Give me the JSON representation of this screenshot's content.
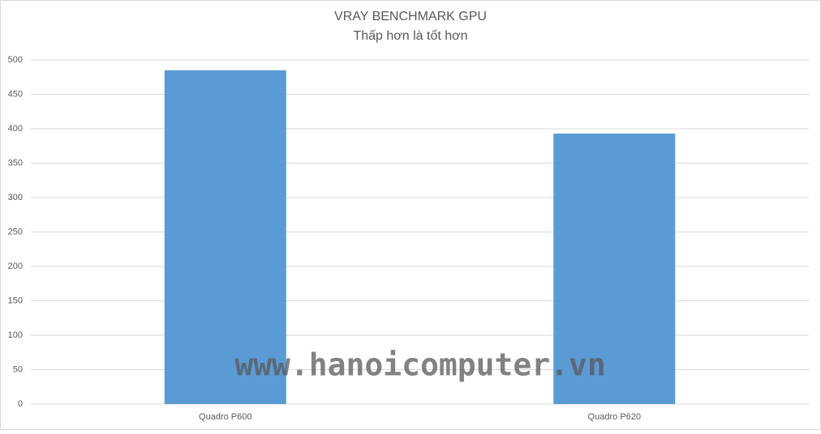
{
  "chart_data": {
    "type": "bar",
    "title": "VRAY BENCHMARK GPU",
    "subtitle": "Thấp hơn là tốt hơn",
    "categories": [
      "Quadro P600",
      "Quadro P620"
    ],
    "values": [
      485,
      393
    ],
    "color": "#5b9bd5",
    "ylim": [
      0,
      500
    ],
    "yticks": [
      0,
      50,
      100,
      150,
      200,
      250,
      300,
      350,
      400,
      450,
      500
    ],
    "grid": true,
    "watermark": "www.hanoicomputer.vn"
  }
}
